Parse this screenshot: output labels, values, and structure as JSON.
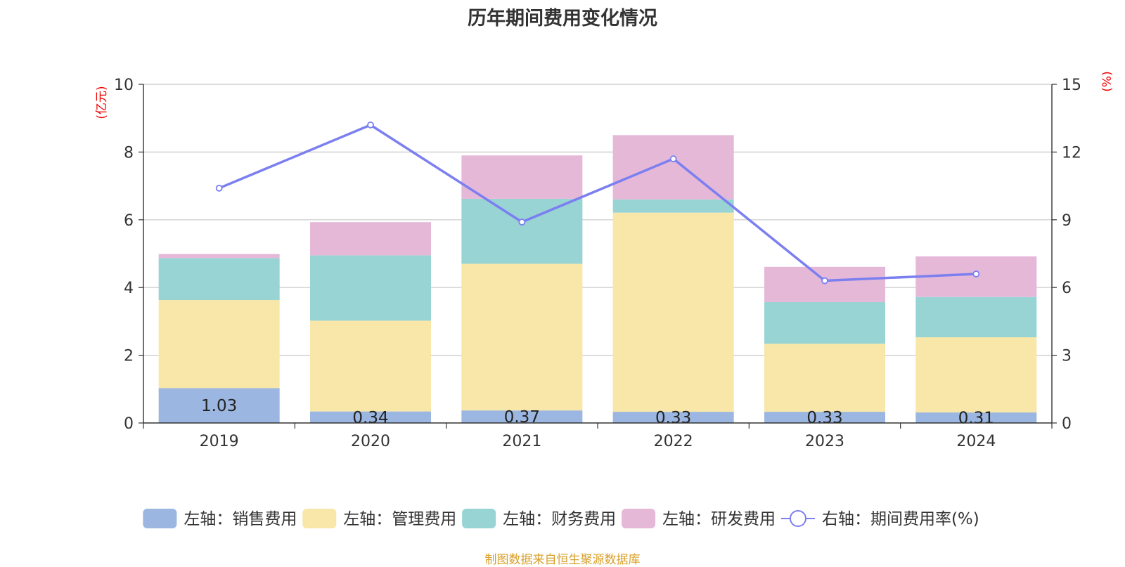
{
  "title": "历年期间费用变化情况",
  "source": "制图数据来自恒生聚源数据库",
  "chart_data": {
    "type": "bar",
    "stacked": true,
    "categories": [
      "2019",
      "2020",
      "2021",
      "2022",
      "2023",
      "2024"
    ],
    "left_axis": {
      "unit": "(亿元)",
      "ylim": [
        0,
        10
      ],
      "ticks": [
        "0",
        "2",
        "4",
        "6",
        "8",
        "10"
      ]
    },
    "right_axis": {
      "unit": "(%)",
      "ylim": [
        0,
        15
      ],
      "ticks": [
        "0",
        "3",
        "6",
        "9",
        "12",
        "15"
      ]
    },
    "series": [
      {
        "name": "左轴：销售费用",
        "type": "bar",
        "axis": "left",
        "color": "#9bb6e0",
        "values": [
          1.03,
          0.34,
          0.37,
          0.33,
          0.33,
          0.31
        ],
        "labels": [
          "1.03",
          "0.34",
          "0.37",
          "0.33",
          "0.33",
          "0.31"
        ]
      },
      {
        "name": "左轴：管理费用",
        "type": "bar",
        "axis": "left",
        "color": "#f8e7a8",
        "values": [
          2.6,
          2.68,
          4.33,
          5.88,
          2.01,
          2.22
        ]
      },
      {
        "name": "左轴：财务费用",
        "type": "bar",
        "axis": "left",
        "color": "#98d4d4",
        "values": [
          1.24,
          1.93,
          1.92,
          0.39,
          1.23,
          1.19
        ]
      },
      {
        "name": "左轴：研发费用",
        "type": "bar",
        "axis": "left",
        "color": "#e6b8d8",
        "values": [
          0.12,
          0.98,
          1.28,
          1.9,
          1.04,
          1.2
        ]
      },
      {
        "name": "右轴：期间费用率(%)",
        "type": "line",
        "axis": "right",
        "color": "#7b7ff0",
        "values": [
          10.4,
          13.2,
          8.9,
          11.7,
          6.3,
          6.6
        ]
      }
    ],
    "grid": true,
    "legend_position": "bottom"
  }
}
